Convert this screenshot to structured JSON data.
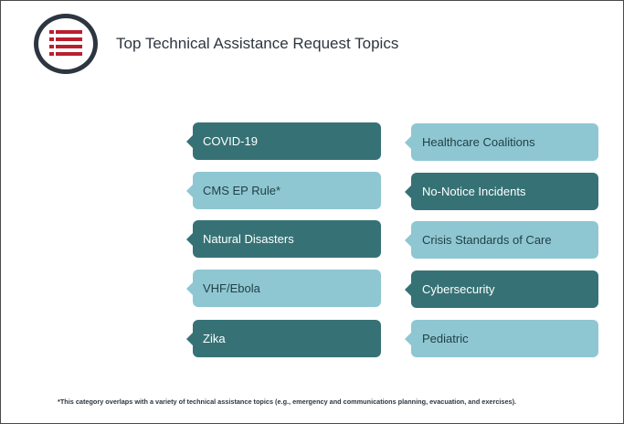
{
  "title": "Top Technical Assistance Request Topics",
  "icon": "list-icon",
  "colors": {
    "dark": "#367275",
    "light": "#8ec7d2",
    "icon_red": "#b8202e",
    "ring": "#2d3640"
  },
  "topics_left": [
    {
      "label": "COVID-19",
      "shade": "dark"
    },
    {
      "label": "CMS EP Rule*",
      "shade": "light"
    },
    {
      "label": "Natural Disasters",
      "shade": "dark"
    },
    {
      "label": "VHF/Ebola",
      "shade": "light"
    },
    {
      "label": "Zika",
      "shade": "dark"
    }
  ],
  "topics_right": [
    {
      "label": "Healthcare Coalitions",
      "shade": "light"
    },
    {
      "label": "No-Notice Incidents",
      "shade": "dark"
    },
    {
      "label": "Crisis Standards of Care",
      "shade": "light"
    },
    {
      "label": "Cybersecurity",
      "shade": "dark"
    },
    {
      "label": "Pediatric",
      "shade": "light"
    }
  ],
  "footnote": "*This category overlaps with a variety of technical assistance topics (e.g., emergency and communications planning, evacuation, and exercises)."
}
